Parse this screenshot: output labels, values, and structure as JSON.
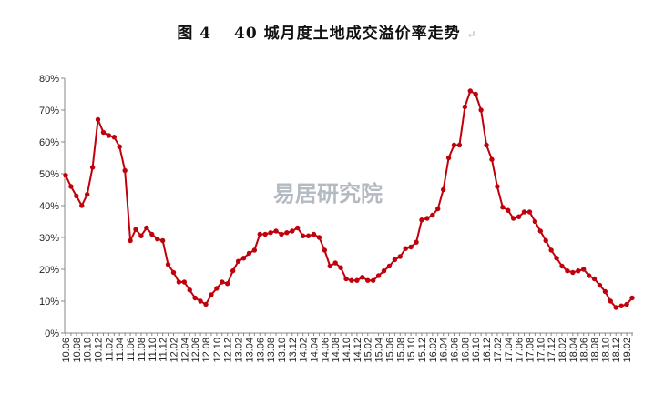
{
  "title_text": "图 4　 40 城月度土地成交溢价率走势",
  "title_mark": "↵",
  "watermark": "易居研究院",
  "colors": {
    "line": "#c0000b",
    "axis": "#888888",
    "background": "#ffffff"
  },
  "chart_data": {
    "type": "line",
    "title": "图 4　 40 城月度土地成交溢价率走势",
    "xlabel": "",
    "ylabel": "",
    "ylim": [
      0,
      80
    ],
    "yticks": [
      "0%",
      "10%",
      "20%",
      "30%",
      "40%",
      "50%",
      "60%",
      "70%",
      "80%"
    ],
    "grid": false,
    "legend": "none",
    "x_tick_labels": [
      "10.06",
      "10.08",
      "10.10",
      "10.12",
      "11.02",
      "11.04",
      "11.06",
      "11.08",
      "11.10",
      "11.12",
      "12.02",
      "12.04",
      "12.06",
      "12.08",
      "12.10",
      "12.12",
      "13.02",
      "13.04",
      "13.06",
      "13.08",
      "13.10",
      "13.12",
      "14.02",
      "14.04",
      "14.06",
      "14.08",
      "14.10",
      "14.12",
      "15.02",
      "15.04",
      "15.06",
      "15.08",
      "15.10",
      "15.12",
      "16.02",
      "16.04",
      "16.06",
      "16.08",
      "16.10",
      "16.12",
      "17.02",
      "17.04",
      "17.06",
      "17.08",
      "17.10",
      "17.12",
      "18.02",
      "18.04",
      "18.06",
      "18.08",
      "18.10",
      "18.12",
      "19.02"
    ],
    "x": [
      "10.06",
      "10.07",
      "10.08",
      "10.09",
      "10.10",
      "10.11",
      "10.12",
      "11.01",
      "11.02",
      "11.03",
      "11.04",
      "11.05",
      "11.06",
      "11.07",
      "11.08",
      "11.09",
      "11.10",
      "11.11",
      "11.12",
      "12.01",
      "12.02",
      "12.03",
      "12.04",
      "12.05",
      "12.06",
      "12.07",
      "12.08",
      "12.09",
      "12.10",
      "12.11",
      "12.12",
      "13.01",
      "13.02",
      "13.03",
      "13.04",
      "13.05",
      "13.06",
      "13.07",
      "13.08",
      "13.09",
      "13.10",
      "13.11",
      "13.12",
      "14.01",
      "14.02",
      "14.03",
      "14.04",
      "14.05",
      "14.06",
      "14.07",
      "14.08",
      "14.09",
      "14.10",
      "14.11",
      "14.12",
      "15.01",
      "15.02",
      "15.03",
      "15.04",
      "15.05",
      "15.06",
      "15.07",
      "15.08",
      "15.09",
      "15.10",
      "15.11",
      "15.12",
      "16.01",
      "16.02",
      "16.03",
      "16.04",
      "16.05",
      "16.06",
      "16.07",
      "16.08",
      "16.09",
      "16.10",
      "16.11",
      "16.12",
      "17.01",
      "17.02",
      "17.03",
      "17.04",
      "17.05",
      "17.06",
      "17.07",
      "17.08",
      "17.09",
      "17.10",
      "17.11",
      "17.12",
      "18.01",
      "18.02",
      "18.03",
      "18.04",
      "18.05",
      "18.06",
      "18.07",
      "18.08",
      "18.09",
      "18.10",
      "18.11",
      "18.12",
      "19.01",
      "19.02",
      "19.03"
    ],
    "series": [
      {
        "values": [
          49.5,
          46,
          43,
          40,
          43.5,
          52,
          67,
          63,
          62,
          61.5,
          58.5,
          51,
          29,
          32.5,
          30.5,
          33,
          31,
          29.5,
          29,
          21.5,
          19,
          16,
          16,
          13.5,
          11,
          10,
          9,
          12,
          14,
          16,
          15.5,
          19.5,
          22.5,
          23.5,
          25,
          26,
          31,
          31,
          31.5,
          32,
          31,
          31.5,
          32,
          33,
          30.5,
          30.5,
          31,
          30,
          26,
          21,
          22,
          20.5,
          17,
          16.5,
          16.5,
          17.5,
          16.5,
          16.5,
          18,
          19.5,
          21,
          23,
          24,
          26.5,
          27,
          28.5,
          35.5,
          36,
          37,
          39,
          45,
          55,
          59,
          59,
          71,
          76,
          75,
          70,
          59,
          54.5,
          46,
          39.5,
          38.5,
          36,
          36.5,
          38,
          38,
          35,
          32,
          29,
          26,
          23.5,
          21,
          19.5,
          19,
          19.5,
          20,
          18,
          17,
          15,
          13,
          10,
          8,
          8.5,
          9,
          11
        ]
      }
    ]
  }
}
